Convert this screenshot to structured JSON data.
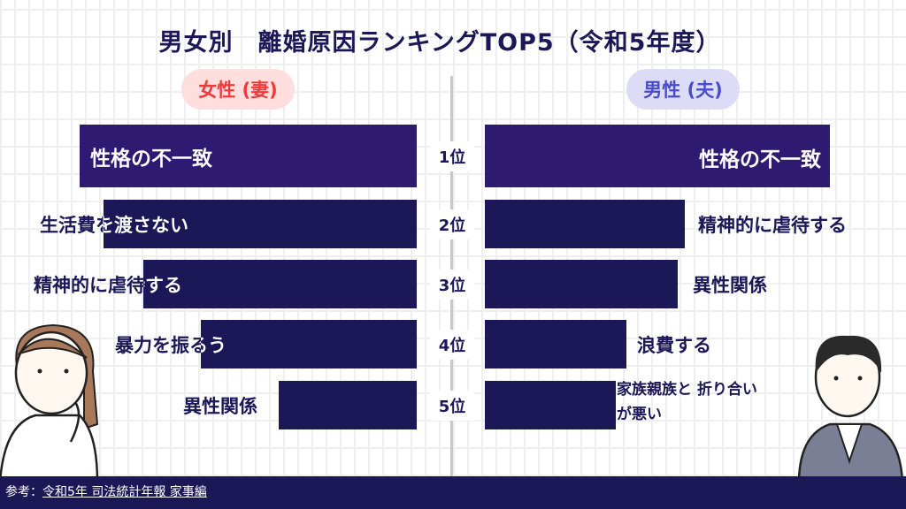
{
  "title": "男女別　離婚原因ランキングTOP5（令和5年度）",
  "footer": {
    "prefix": "参考：",
    "source_link": "令和5年 司法統計年報 家事編"
  },
  "colors": {
    "bar": "#1c1757",
    "bar_top": "#2f1a72",
    "female": "#f03a3a",
    "male": "#4a4acc"
  },
  "chart_data": {
    "type": "bar",
    "title": "男女別　離婚原因ランキングTOP5（令和5年度）",
    "categories": [
      "1位",
      "2位",
      "3位",
      "4位",
      "5位"
    ],
    "value_unit": "relative bar length (% of rank 1, no values printed)",
    "series": [
      {
        "name": "女性 (妻)",
        "labels": [
          "性格の不一致",
          "生活費を渡さない",
          "精神的に虐待する",
          "暴力を振るう",
          "異性関係"
        ],
        "values": [
          100,
          93,
          81,
          64,
          41
        ]
      },
      {
        "name": "男性 (夫)",
        "labels": [
          "性格の不一致",
          "精神的に虐待する",
          "異性関係",
          "浪費する",
          "家族親族と 折り合いが悪い"
        ],
        "values": [
          100,
          58,
          56,
          41,
          38
        ]
      }
    ]
  }
}
